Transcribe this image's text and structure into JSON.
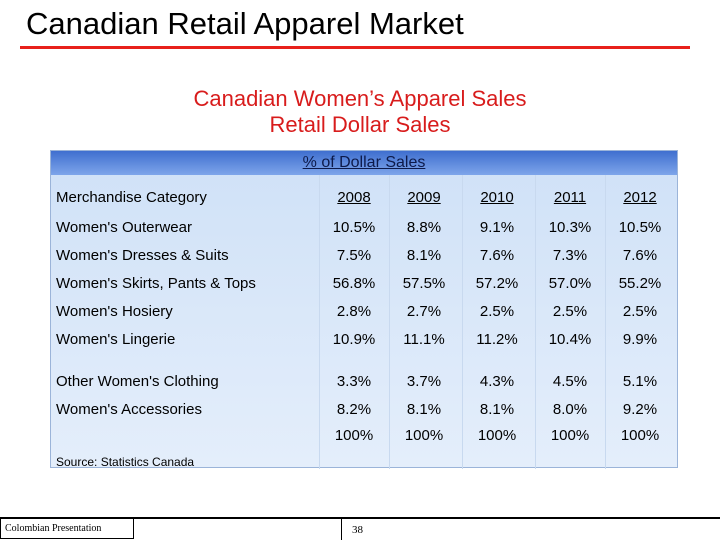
{
  "slide": {
    "title": "Canadian Retail Apparel Market",
    "subtitle_line1": "Canadian Women’s Apparel Sales",
    "subtitle_line2": "Retail Dollar Sales"
  },
  "table": {
    "header_bar": "% of Dollar Sales",
    "category_header": "Merchandise Category",
    "years": [
      "2008",
      "2009",
      "2010",
      "2011",
      "2012"
    ],
    "rows": [
      {
        "category": "Women's Outerwear",
        "values": [
          "10.5%",
          "8.8%",
          "9.1%",
          "10.3%",
          "10.5%"
        ]
      },
      {
        "category": "Women's Dresses & Suits",
        "values": [
          "7.5%",
          "8.1%",
          "7.6%",
          "7.3%",
          "7.6%"
        ]
      },
      {
        "category": "Women's Skirts, Pants & Tops",
        "values": [
          "56.8%",
          "57.5%",
          "57.2%",
          "57.0%",
          "55.2%"
        ]
      },
      {
        "category": "Women's Hosiery",
        "values": [
          "2.8%",
          "2.7%",
          "2.5%",
          "2.5%",
          "2.5%"
        ]
      },
      {
        "category": "Women's Lingerie",
        "values": [
          "10.9%",
          "11.1%",
          "11.2%",
          "10.4%",
          "9.9%"
        ]
      },
      {
        "category": "Other Women's Clothing",
        "values": [
          "3.3%",
          "3.7%",
          "4.3%",
          "4.5%",
          "5.1%"
        ]
      },
      {
        "category": "Women's Accessories",
        "values": [
          "8.2%",
          "8.1%",
          "8.1%",
          "8.0%",
          "9.2%"
        ]
      }
    ],
    "totals": [
      "100%",
      "100%",
      "100%",
      "100%",
      "100%"
    ],
    "source": "Source: Statistics Canada"
  },
  "footer": {
    "left_label": "Colombian Presentation",
    "page_number": "38"
  }
}
